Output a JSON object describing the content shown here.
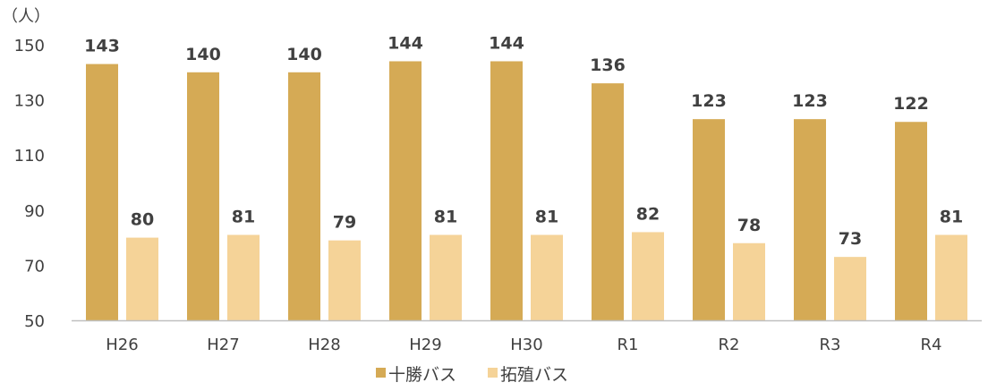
{
  "chart_data": {
    "type": "bar",
    "unit_label": "（人）",
    "categories": [
      "H26",
      "H27",
      "H28",
      "H29",
      "H30",
      "R1",
      "R2",
      "R3",
      "R4"
    ],
    "series": [
      {
        "name": "十勝バス",
        "color": "#D5AA55",
        "values": [
          143,
          140,
          140,
          144,
          144,
          136,
          123,
          123,
          122
        ]
      },
      {
        "name": "拓殖バス",
        "color": "#F5D398",
        "values": [
          80,
          81,
          79,
          81,
          81,
          82,
          78,
          73,
          81
        ]
      }
    ],
    "yticks": [
      50,
      70,
      90,
      110,
      130,
      150
    ],
    "ylim": [
      50,
      150
    ],
    "legend_position": "bottom",
    "grid": false,
    "axis_color": "#BFBFBF"
  }
}
